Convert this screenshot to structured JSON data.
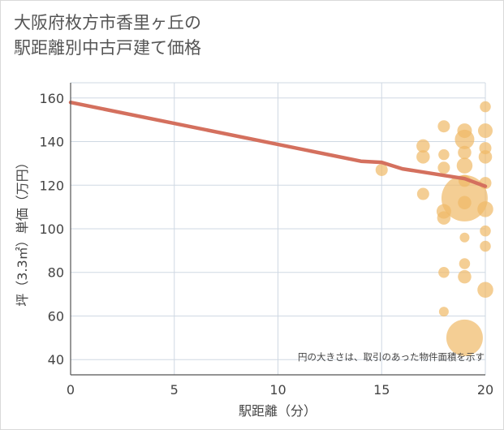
{
  "chart_data": {
    "type": "scatter",
    "title_lines": [
      "大阪府枚方市香里ヶ丘の",
      "駅距離別中古戸建て価格"
    ],
    "xlabel": "駅距離（分）",
    "ylabel": "坪（3.3㎡）単価（万円）",
    "xlim": [
      0,
      20
    ],
    "ylim": [
      33,
      167
    ],
    "x_ticks": [
      0,
      5,
      10,
      15,
      20
    ],
    "y_ticks": [
      40,
      60,
      80,
      100,
      120,
      140,
      160
    ],
    "note": "円の大きさは、取引のあった物件面積を示す",
    "colors": {
      "trend": "#d4705e",
      "bubble": "#f0b966",
      "grid": "#cfd8e3",
      "axis": "#555555"
    },
    "trend_line": {
      "x": [
        0,
        14,
        15,
        16,
        18,
        19,
        20
      ],
      "y": [
        158,
        131,
        130.5,
        127.5,
        124.5,
        123,
        119.5
      ]
    },
    "points": [
      {
        "x": 15,
        "y": 127,
        "size": 1
      },
      {
        "x": 17,
        "y": 138,
        "size": 1.1
      },
      {
        "x": 17,
        "y": 133,
        "size": 1.1
      },
      {
        "x": 17,
        "y": 116,
        "size": 1
      },
      {
        "x": 18,
        "y": 147,
        "size": 1
      },
      {
        "x": 18,
        "y": 134,
        "size": 0.9
      },
      {
        "x": 18,
        "y": 128,
        "size": 1
      },
      {
        "x": 18,
        "y": 108,
        "size": 1.2
      },
      {
        "x": 18,
        "y": 105,
        "size": 1.1
      },
      {
        "x": 18,
        "y": 80,
        "size": 0.9
      },
      {
        "x": 18,
        "y": 62,
        "size": 0.8
      },
      {
        "x": 19,
        "y": 145,
        "size": 1.2
      },
      {
        "x": 19,
        "y": 141,
        "size": 1.6
      },
      {
        "x": 19,
        "y": 135,
        "size": 1.1
      },
      {
        "x": 19,
        "y": 129,
        "size": 1.3
      },
      {
        "x": 19,
        "y": 122,
        "size": 1
      },
      {
        "x": 19,
        "y": 114,
        "size": 3.8
      },
      {
        "x": 19,
        "y": 112,
        "size": 1.1
      },
      {
        "x": 19,
        "y": 96,
        "size": 0.8
      },
      {
        "x": 19,
        "y": 84,
        "size": 0.9
      },
      {
        "x": 19,
        "y": 78,
        "size": 1.1
      },
      {
        "x": 19,
        "y": 50,
        "size": 3.0
      },
      {
        "x": 20,
        "y": 156,
        "size": 0.9
      },
      {
        "x": 20,
        "y": 145,
        "size": 1.2
      },
      {
        "x": 20,
        "y": 137,
        "size": 1
      },
      {
        "x": 20,
        "y": 133,
        "size": 1.1
      },
      {
        "x": 20,
        "y": 121,
        "size": 1
      },
      {
        "x": 20,
        "y": 109,
        "size": 1.3
      },
      {
        "x": 20,
        "y": 99,
        "size": 0.9
      },
      {
        "x": 20,
        "y": 92,
        "size": 0.9
      },
      {
        "x": 20,
        "y": 72,
        "size": 1.3
      }
    ]
  }
}
